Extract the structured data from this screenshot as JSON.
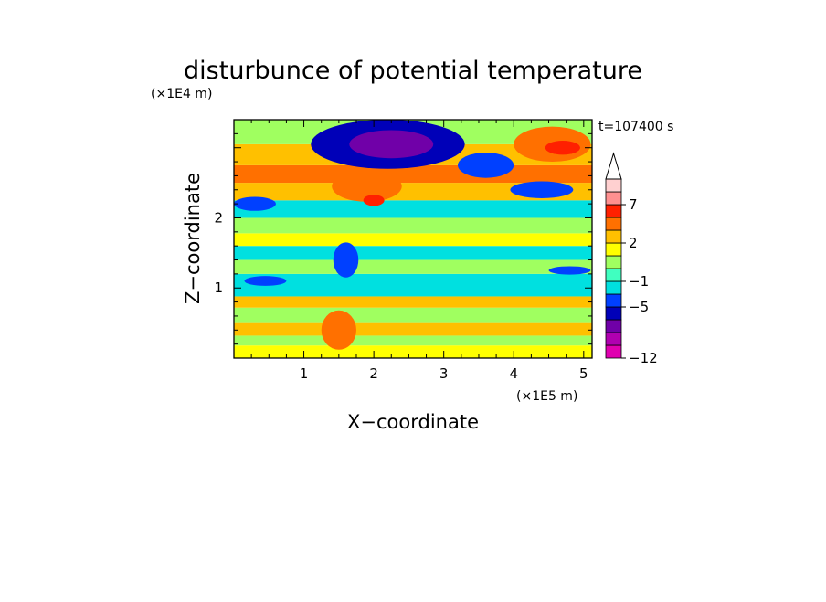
{
  "chart_data": {
    "type": "heatmap",
    "title": "disturbunce of potential temperature",
    "xlabel": "X−coordinate",
    "ylabel": "Z−coordinate",
    "x_unit": "(×1E5 m)",
    "y_unit": "(×1E4 m)",
    "time_label": "t=107400 s",
    "xlim": [
      0,
      5.12
    ],
    "ylim": [
      0,
      3.4
    ],
    "x_ticks": [
      1,
      2,
      3,
      4,
      5
    ],
    "x_tick_labels": [
      "1",
      "2",
      "3",
      "4",
      "5"
    ],
    "y_ticks": [
      1,
      2
    ],
    "y_tick_labels": [
      "1",
      "2"
    ],
    "grid": false,
    "colorbar": {
      "placement": "right",
      "extend": "max",
      "tick_labels": [
        "7",
        "2",
        "−1",
        "−5",
        "−12"
      ],
      "tick_levels": [
        7,
        2,
        -1,
        -5,
        -12
      ],
      "levels": [
        -12,
        -11,
        -9,
        -7,
        -5,
        -3,
        -1,
        0,
        1,
        2,
        3,
        5,
        7,
        9,
        11
      ],
      "colors": [
        "#e000b0",
        "#b000b0",
        "#7000a8",
        "#0000b8",
        "#0040ff",
        "#00e0e0",
        "#40ffc0",
        "#a0ff60",
        "#ffff00",
        "#ffc000",
        "#ff7000",
        "#ff2000",
        "#ff9090",
        "#ffd0d0"
      ]
    },
    "bands": [
      {
        "z": [
          0.0,
          0.18
        ],
        "value": 1.5
      },
      {
        "z": [
          0.18,
          0.32
        ],
        "value": 0.5
      },
      {
        "z": [
          0.32,
          0.5
        ],
        "value": 2.5
      },
      {
        "z": [
          0.5,
          0.72
        ],
        "value": 0.5
      },
      {
        "z": [
          0.72,
          0.88
        ],
        "value": 2.5
      },
      {
        "z": [
          0.88,
          1.2
        ],
        "value": -1.5
      },
      {
        "z": [
          1.2,
          1.4
        ],
        "value": 0.5
      },
      {
        "z": [
          1.4,
          1.6
        ],
        "value": -1.5
      },
      {
        "z": [
          1.6,
          1.78
        ],
        "value": 1.5
      },
      {
        "z": [
          1.78,
          2.0
        ],
        "value": 0.5
      },
      {
        "z": [
          2.0,
          2.25
        ],
        "value": -2
      },
      {
        "z": [
          2.25,
          2.5
        ],
        "value": 2.5
      },
      {
        "z": [
          2.5,
          2.75
        ],
        "value": 4
      },
      {
        "z": [
          2.75,
          3.05
        ],
        "value": 2.5
      },
      {
        "z": [
          3.05,
          3.4
        ],
        "value": 0.5
      }
    ],
    "features": [
      {
        "x": 2.2,
        "z": 3.05,
        "rx": 1.1,
        "rz": 0.35,
        "value": -6
      },
      {
        "x": 2.25,
        "z": 3.05,
        "rx": 0.6,
        "rz": 0.2,
        "value": -8
      },
      {
        "x": 1.9,
        "z": 2.45,
        "rx": 0.5,
        "rz": 0.22,
        "value": 4
      },
      {
        "x": 2.0,
        "z": 2.25,
        "rx": 0.15,
        "rz": 0.08,
        "value": 6
      },
      {
        "x": 3.6,
        "z": 2.75,
        "rx": 0.4,
        "rz": 0.18,
        "value": -5
      },
      {
        "x": 4.55,
        "z": 3.05,
        "rx": 0.55,
        "rz": 0.25,
        "value": 4
      },
      {
        "x": 4.7,
        "z": 3.0,
        "rx": 0.25,
        "rz": 0.1,
        "value": 6
      },
      {
        "x": 0.3,
        "z": 2.2,
        "rx": 0.3,
        "rz": 0.1,
        "value": -5
      },
      {
        "x": 4.4,
        "z": 2.4,
        "rx": 0.45,
        "rz": 0.12,
        "value": -5
      },
      {
        "x": 0.45,
        "z": 1.1,
        "rx": 0.3,
        "rz": 0.07,
        "value": -5
      },
      {
        "x": 1.6,
        "z": 1.4,
        "rx": 0.18,
        "rz": 0.25,
        "value": -5
      },
      {
        "x": 1.5,
        "z": 0.4,
        "rx": 0.25,
        "rz": 0.28,
        "value": 3
      },
      {
        "x": 4.8,
        "z": 1.25,
        "rx": 0.3,
        "rz": 0.06,
        "value": -5
      }
    ]
  }
}
